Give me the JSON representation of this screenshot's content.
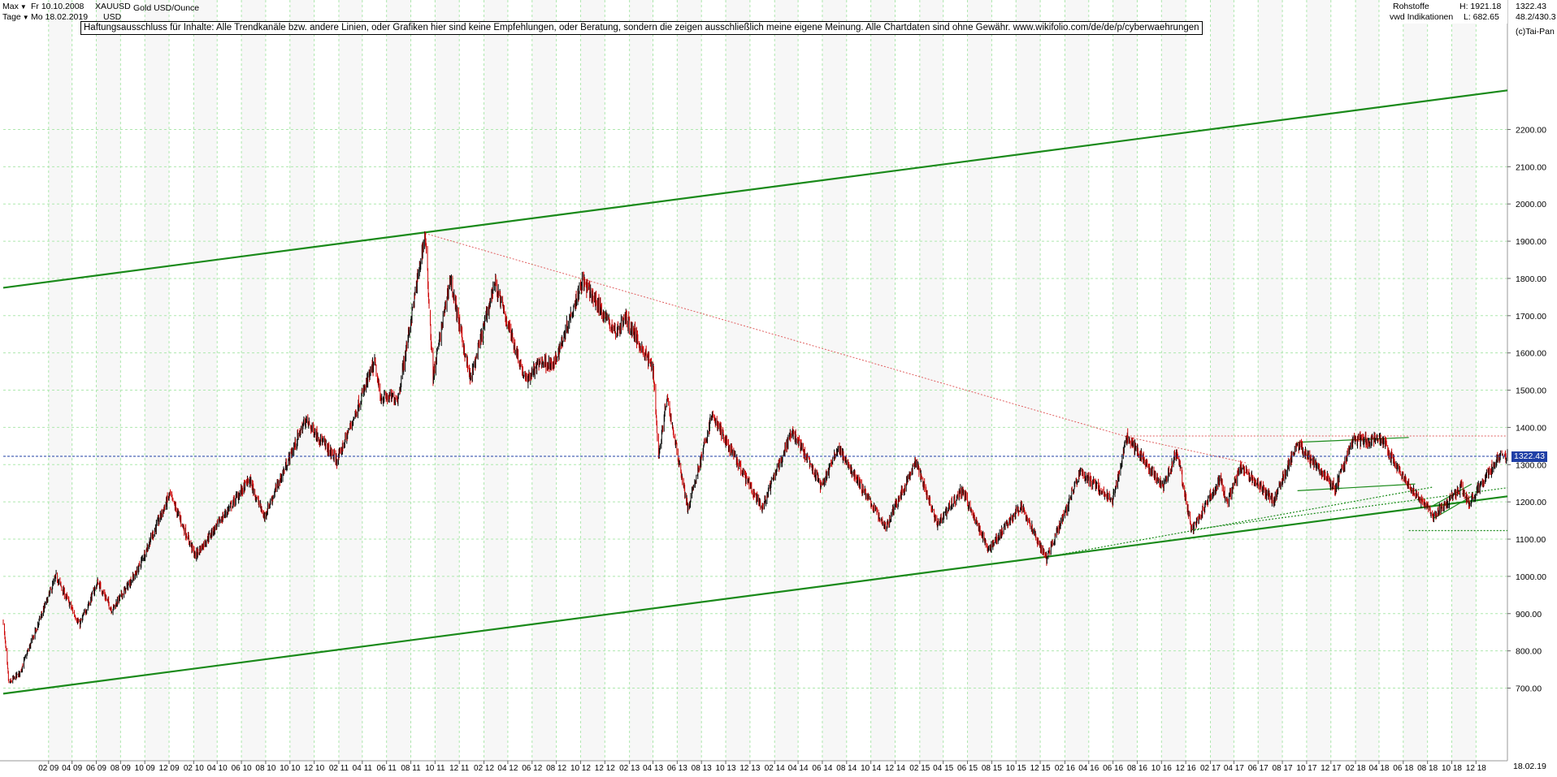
{
  "header": {
    "range_label": "Max",
    "interval_label": "Tage",
    "date_from": "Fr 10.10.2008",
    "date_to": "Mo 18.02.2019",
    "symbol": "XAUUSD",
    "currency": "USD",
    "instrument_name": "Gold USD/Ounce"
  },
  "disclaimer": "Haftungsausschluss für Inhalte: Alle Trendkanäle bzw. andere Linien, oder Grafiken hier sind keine Empfehlungen, oder Beratung, sondern die zeigen ausschließlich meine eigene Meinung. Alle Chartdaten sind ohne Gewähr.  www.wikifolio.com/de/de/p/cyberwaehrungen",
  "info_box": {
    "category": "Rohstoffe",
    "source": "vwd Indikationen",
    "high_label": "H: 1921.18",
    "low_label": "L: 682.65",
    "last_value": "1322.43",
    "ratio": "48.2/430.3",
    "copyright": "(c)Tai-Pan"
  },
  "current_price_tag": "1322.43",
  "footer_date": "18.02.19",
  "colors": {
    "up_candle": "#000000",
    "down_candle": "#cc0000",
    "channel_line": "#1a8a1a",
    "red_trendline": "#e06060",
    "grid": "#aee8ae",
    "price_line": "#1f3fa6"
  },
  "chart_data": {
    "type": "candlestick",
    "title": "Gold USD/Ounce",
    "ylabel": "USD",
    "ylim": [
      682.65,
      2300
    ],
    "yticks": [
      700,
      800,
      900,
      1000,
      1100,
      1200,
      1300,
      1400,
      1500,
      1600,
      1700,
      1800,
      1900,
      2000,
      2100,
      2200
    ],
    "ytick_labels": [
      "700.00",
      "800.00",
      "900.00",
      "1000.00",
      "1100.00",
      "1200.00",
      "1300.00",
      "1400.00",
      "1500.00",
      "1600.00",
      "1700.00",
      "1800.00",
      "1900.00",
      "2000.00",
      "2100.00",
      "2200.00"
    ],
    "xlim": [
      "2008-10-10",
      "2019-02-18"
    ],
    "xtick_labels": [
      "02 09",
      "04 09",
      "06 09",
      "08 09",
      "10 09",
      "12 09",
      "02 10",
      "04 10",
      "06 10",
      "08 10",
      "10 10",
      "12 10",
      "02 11",
      "04 11",
      "06 11",
      "08 11",
      "10 11",
      "12 11",
      "02 12",
      "04 12",
      "06 12",
      "08 12",
      "10 12",
      "12 12",
      "02 13",
      "04 13",
      "06 13",
      "08 13",
      "10 13",
      "12 13",
      "02 14",
      "04 14",
      "06 14",
      "08 14",
      "10 14",
      "12 14",
      "02 15",
      "04 15",
      "06 15",
      "08 15",
      "10 15",
      "12 15",
      "02 16",
      "04 16",
      "06 16",
      "08 16",
      "10 16",
      "12 16",
      "02 17",
      "04 17",
      "06 17",
      "08 17",
      "10 17",
      "12 17",
      "02 18",
      "04 18",
      "06 18",
      "08 18",
      "10 18",
      "12 18"
    ],
    "grid": true,
    "last_close": 1322.43,
    "high": 1921.18,
    "low": 682.65,
    "key_points": [
      {
        "x": "2008-10-10",
        "y": 880
      },
      {
        "x": "2008-10-24",
        "y": 712
      },
      {
        "x": "2008-11-20",
        "y": 740
      },
      {
        "x": "2009-02-20",
        "y": 1000
      },
      {
        "x": "2009-04-20",
        "y": 870
      },
      {
        "x": "2009-06-05",
        "y": 985
      },
      {
        "x": "2009-07-10",
        "y": 910
      },
      {
        "x": "2009-09-10",
        "y": 1010
      },
      {
        "x": "2009-12-03",
        "y": 1220
      },
      {
        "x": "2010-02-05",
        "y": 1055
      },
      {
        "x": "2010-06-21",
        "y": 1260
      },
      {
        "x": "2010-07-28",
        "y": 1160
      },
      {
        "x": "2010-11-09",
        "y": 1420
      },
      {
        "x": "2011-01-28",
        "y": 1310
      },
      {
        "x": "2011-05-02",
        "y": 1575
      },
      {
        "x": "2011-05-16",
        "y": 1480
      },
      {
        "x": "2011-06-30",
        "y": 1480
      },
      {
        "x": "2011-09-06",
        "y": 1921
      },
      {
        "x": "2011-09-26",
        "y": 1535
      },
      {
        "x": "2011-11-08",
        "y": 1800
      },
      {
        "x": "2011-12-29",
        "y": 1525
      },
      {
        "x": "2012-02-28",
        "y": 1790
      },
      {
        "x": "2012-05-16",
        "y": 1525
      },
      {
        "x": "2012-06-25",
        "y": 1580
      },
      {
        "x": "2012-07-25",
        "y": 1565
      },
      {
        "x": "2012-10-05",
        "y": 1795
      },
      {
        "x": "2012-12-28",
        "y": 1655
      },
      {
        "x": "2013-01-23",
        "y": 1695
      },
      {
        "x": "2013-04-02",
        "y": 1555
      },
      {
        "x": "2013-04-15",
        "y": 1321
      },
      {
        "x": "2013-05-06",
        "y": 1480
      },
      {
        "x": "2013-06-28",
        "y": 1180
      },
      {
        "x": "2013-08-28",
        "y": 1433
      },
      {
        "x": "2013-12-31",
        "y": 1182
      },
      {
        "x": "2014-03-17",
        "y": 1392
      },
      {
        "x": "2014-05-30",
        "y": 1240
      },
      {
        "x": "2014-07-10",
        "y": 1345
      },
      {
        "x": "2014-11-07",
        "y": 1132
      },
      {
        "x": "2015-01-22",
        "y": 1307
      },
      {
        "x": "2015-03-17",
        "y": 1142
      },
      {
        "x": "2015-05-18",
        "y": 1232
      },
      {
        "x": "2015-07-24",
        "y": 1072
      },
      {
        "x": "2015-10-14",
        "y": 1191
      },
      {
        "x": "2015-12-17",
        "y": 1046
      },
      {
        "x": "2016-03-11",
        "y": 1282
      },
      {
        "x": "2016-05-30",
        "y": 1200
      },
      {
        "x": "2016-07-06",
        "y": 1375
      },
      {
        "x": "2016-10-06",
        "y": 1240
      },
      {
        "x": "2016-11-09",
        "y": 1337
      },
      {
        "x": "2016-12-15",
        "y": 1122
      },
      {
        "x": "2017-02-27",
        "y": 1264
      },
      {
        "x": "2017-03-15",
        "y": 1194
      },
      {
        "x": "2017-04-17",
        "y": 1295
      },
      {
        "x": "2017-07-10",
        "y": 1204
      },
      {
        "x": "2017-09-08",
        "y": 1357
      },
      {
        "x": "2017-12-12",
        "y": 1236
      },
      {
        "x": "2018-01-25",
        "y": 1366
      },
      {
        "x": "2018-04-11",
        "y": 1365
      },
      {
        "x": "2018-05-21",
        "y": 1282
      },
      {
        "x": "2018-08-16",
        "y": 1160
      },
      {
        "x": "2018-10-26",
        "y": 1243
      },
      {
        "x": "2018-11-13",
        "y": 1196
      },
      {
        "x": "2019-01-31",
        "y": 1326
      },
      {
        "x": "2019-02-18",
        "y": 1322.43
      }
    ],
    "annotations": [
      {
        "type": "line",
        "name": "upper-channel",
        "from": {
          "x": "2008-10-10",
          "y": 1775
        },
        "to": {
          "x": "2019-02-18",
          "y": 2305
        }
      },
      {
        "type": "line",
        "name": "lower-channel",
        "from": {
          "x": "2008-10-10",
          "y": 685
        },
        "to": {
          "x": "2019-02-18",
          "y": 1215
        }
      },
      {
        "type": "line",
        "name": "red-trendline",
        "dashed": true,
        "from": {
          "x": "2011-09-06",
          "y": 1921
        },
        "to": {
          "x": "2016-07-06",
          "y": 1375
        }
      },
      {
        "type": "line",
        "name": "red-extension",
        "dashed": true,
        "from": {
          "x": "2016-07-06",
          "y": 1375
        },
        "to": {
          "x": "2017-05-01",
          "y": 1305
        }
      },
      {
        "type": "line",
        "name": "red-resistance",
        "dashed": true,
        "from": {
          "x": "2016-07-06",
          "y": 1377
        },
        "to": {
          "x": "2019-02-18",
          "y": 1377
        }
      },
      {
        "type": "line",
        "name": "green-support-dashed",
        "dashed": true,
        "from": {
          "x": "2015-12-17",
          "y": 1052
        },
        "to": {
          "x": "2018-08-16",
          "y": 1240
        }
      },
      {
        "type": "line",
        "name": "green-support-dashed-2",
        "dashed": true,
        "from": {
          "x": "2016-12-15",
          "y": 1125
        },
        "to": {
          "x": "2019-02-18",
          "y": 1238
        }
      },
      {
        "type": "line",
        "name": "green-horizontal-dashed",
        "dashed": true,
        "from": {
          "x": "2018-06-15",
          "y": 1123
        },
        "to": {
          "x": "2019-02-18",
          "y": 1123
        }
      },
      {
        "type": "line",
        "name": "triangle-top",
        "from": {
          "x": "2017-09-08",
          "y": 1360
        },
        "to": {
          "x": "2018-06-15",
          "y": 1373
        }
      },
      {
        "type": "line",
        "name": "triangle-bottom",
        "from": {
          "x": "2017-09-08",
          "y": 1230
        },
        "to": {
          "x": "2018-07-01",
          "y": 1248
        }
      },
      {
        "type": "line",
        "name": "flag-top",
        "from": {
          "x": "2018-08-15",
          "y": 1190
        },
        "to": {
          "x": "2018-11-20",
          "y": 1248
        }
      },
      {
        "type": "line",
        "name": "flag-bottom",
        "from": {
          "x": "2018-08-15",
          "y": 1155
        },
        "to": {
          "x": "2018-11-20",
          "y": 1215
        }
      },
      {
        "type": "hline",
        "name": "current-price",
        "dashed": true,
        "y": 1322.43
      }
    ]
  }
}
